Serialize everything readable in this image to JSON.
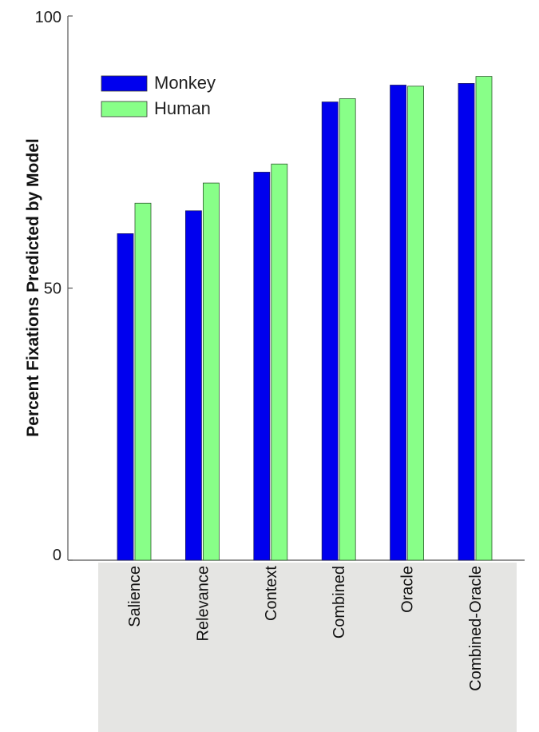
{
  "chart_data": {
    "type": "bar",
    "title": "",
    "xlabel": "",
    "ylabel": "Percent Fixations Predicted by Model",
    "ylim": [
      0,
      100
    ],
    "yticks": [
      "0",
      "50",
      "100"
    ],
    "ytick_values": [
      0,
      50,
      100
    ],
    "categories": [
      "Salience",
      "Relevance",
      "Context",
      "Combined",
      "Oracle",
      "Combined-Oracle"
    ],
    "series": [
      {
        "name": "Monkey",
        "color": "#0000ee",
        "values": [
          60,
          64.2,
          71.3,
          84.2,
          87.3,
          87.6
        ]
      },
      {
        "name": "Human",
        "color": "#88ff88",
        "values": [
          65.6,
          69.3,
          72.8,
          84.8,
          87.1,
          88.9
        ]
      }
    ],
    "legend_position": "top-left",
    "grid": false,
    "category_band_color": "#e5e5e3"
  }
}
